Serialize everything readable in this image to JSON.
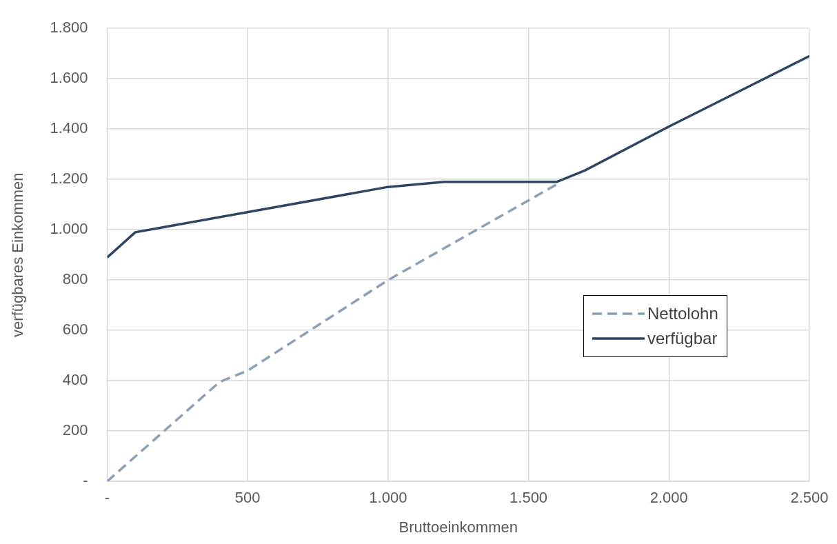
{
  "chart_data": {
    "type": "line",
    "xlabel": "Bruttoeinkommen",
    "ylabel": "verfügbares Einkommen",
    "xlim": [
      0,
      2500
    ],
    "xticks": [
      {
        "value": 0,
        "label": "-"
      },
      {
        "value": 500,
        "label": "500"
      },
      {
        "value": 1000,
        "label": "1.000"
      },
      {
        "value": 1500,
        "label": "1.500"
      },
      {
        "value": 2000,
        "label": "2.000"
      },
      {
        "value": 2500,
        "label": "2.500"
      }
    ],
    "ylim": [
      0,
      1800
    ],
    "yticks": [
      {
        "value": 0,
        "label": "-"
      },
      {
        "value": 200,
        "label": "200"
      },
      {
        "value": 400,
        "label": "400"
      },
      {
        "value": 600,
        "label": "600"
      },
      {
        "value": 800,
        "label": "800"
      },
      {
        "value": 1000,
        "label": "1.000"
      },
      {
        "value": 1200,
        "label": "1.200"
      },
      {
        "value": 1400,
        "label": "1.400"
      },
      {
        "value": 1600,
        "label": "1.600"
      },
      {
        "value": 1800,
        "label": "1.800"
      }
    ],
    "grid": true,
    "legend": "right",
    "marker": "none",
    "series": [
      {
        "name": "Nettolohn",
        "color": "#8ea0b5",
        "line_style": "dashed",
        "x": [
          0,
          400,
          500,
          1000,
          1600
        ],
        "values": [
          0,
          395,
          440,
          800,
          1180
        ]
      },
      {
        "name": "verfügbar",
        "color": "#2e4661",
        "line_style": "solid",
        "x": [
          0,
          100,
          1000,
          1200,
          1600,
          1700,
          2000,
          2500
        ],
        "values": [
          890,
          990,
          1170,
          1190,
          1190,
          1235,
          1410,
          1690
        ]
      }
    ]
  }
}
